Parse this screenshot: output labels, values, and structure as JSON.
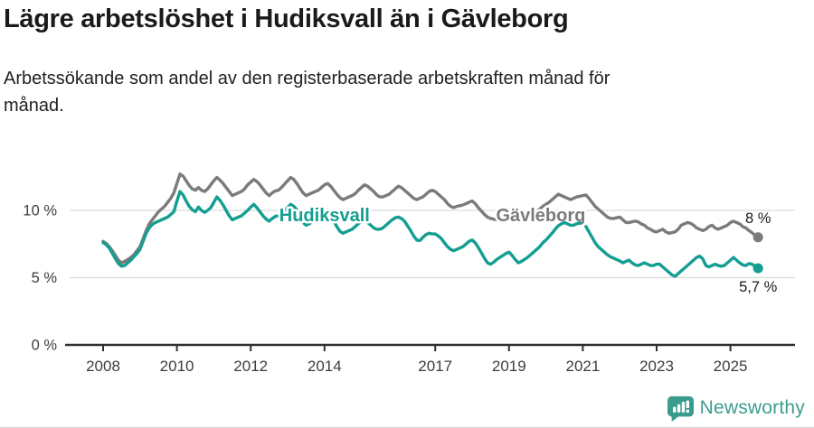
{
  "chart_data": {
    "type": "line",
    "title": "Lägre arbetslöshet i Hudiksvall än i Gävleborg",
    "subtitle": "Arbetssökande som andel av den registerbaserade arbetskraften månad för\nmånad.",
    "x_range": [
      2008,
      2025.75
    ],
    "ylim": [
      0,
      13.2
    ],
    "grid": "horizontal",
    "grid_color": "#dcdcdc",
    "axis_color": "#2e2e2e",
    "tick_label_color": "#3d3d3d",
    "end_label_color": "#1a1a1a",
    "x_ticks": [
      2008,
      2010,
      2012,
      2014,
      2017,
      2019,
      2021,
      2023,
      2025
    ],
    "y_ticks": [
      {
        "value": 0,
        "label": "0 %"
      },
      {
        "value": 5,
        "label": "5 %"
      },
      {
        "value": 10,
        "label": "10 %"
      }
    ],
    "series": [
      {
        "name": "Gävleborg",
        "color": "#7b7b7b",
        "end_label": "8 %",
        "end_label_side": "above",
        "label_anchor": {
          "x": 2019.86,
          "y": 9.6
        },
        "start": 2008,
        "step_months": 1,
        "values": [
          7.7,
          7.55,
          7.3,
          7.0,
          6.65,
          6.3,
          6.1,
          6.2,
          6.35,
          6.5,
          6.7,
          7.0,
          7.3,
          7.9,
          8.5,
          9.0,
          9.3,
          9.6,
          9.9,
          10.1,
          10.3,
          10.6,
          10.9,
          11.3,
          12.0,
          12.7,
          12.55,
          12.2,
          11.85,
          11.6,
          11.5,
          11.7,
          11.5,
          11.4,
          11.6,
          11.9,
          12.2,
          12.45,
          12.25,
          12.0,
          11.7,
          11.4,
          11.1,
          11.2,
          11.3,
          11.4,
          11.6,
          11.9,
          12.1,
          12.3,
          12.15,
          11.9,
          11.6,
          11.3,
          11.1,
          11.3,
          11.45,
          11.5,
          11.7,
          11.95,
          12.2,
          12.45,
          12.3,
          12.0,
          11.65,
          11.3,
          11.1,
          11.2,
          11.3,
          11.4,
          11.5,
          11.7,
          11.9,
          12.0,
          11.8,
          11.5,
          11.2,
          10.95,
          10.8,
          10.9,
          11.0,
          11.1,
          11.25,
          11.5,
          11.7,
          11.9,
          11.8,
          11.6,
          11.4,
          11.15,
          11.0,
          11.0,
          11.1,
          11.2,
          11.4,
          11.6,
          11.8,
          11.7,
          11.5,
          11.3,
          11.1,
          10.9,
          10.8,
          10.9,
          11.0,
          11.2,
          11.4,
          11.5,
          11.4,
          11.2,
          11.0,
          10.8,
          10.5,
          10.3,
          10.2,
          10.3,
          10.35,
          10.4,
          10.5,
          10.6,
          10.7,
          10.5,
          10.2,
          9.95,
          9.7,
          9.5,
          9.4,
          9.35,
          9.3,
          9.4,
          9.5,
          9.6,
          9.7,
          9.6,
          9.5,
          9.4,
          9.4,
          9.35,
          9.4,
          9.6,
          9.75,
          9.9,
          10.1,
          10.3,
          10.45,
          10.6,
          10.8,
          11.0,
          11.2,
          11.1,
          11.0,
          10.9,
          10.8,
          10.9,
          11.0,
          11.05,
          11.1,
          11.15,
          10.9,
          10.6,
          10.3,
          10.1,
          9.9,
          9.7,
          9.5,
          9.4,
          9.4,
          9.45,
          9.5,
          9.3,
          9.1,
          9.1,
          9.15,
          9.2,
          9.15,
          9.0,
          8.9,
          8.7,
          8.6,
          8.45,
          8.4,
          8.5,
          8.6,
          8.4,
          8.3,
          8.35,
          8.4,
          8.6,
          8.9,
          9.0,
          9.1,
          9.05,
          8.9,
          8.7,
          8.6,
          8.5,
          8.6,
          8.8,
          8.9,
          8.7,
          8.6,
          8.7,
          8.8,
          8.9,
          9.1,
          9.2,
          9.1,
          9.0,
          8.8,
          8.7,
          8.5,
          8.35,
          8.15,
          8.0
        ]
      },
      {
        "name": "Hudiksvall",
        "color": "#149e91",
        "end_label": "5,7 %",
        "end_label_side": "below",
        "label_anchor": {
          "x": 2014.0,
          "y": 9.6
        },
        "start": 2008,
        "step_months": 1,
        "values": [
          7.6,
          7.45,
          7.2,
          6.8,
          6.4,
          6.05,
          5.85,
          5.9,
          6.1,
          6.3,
          6.55,
          6.8,
          7.1,
          7.7,
          8.3,
          8.7,
          8.95,
          9.1,
          9.2,
          9.3,
          9.4,
          9.5,
          9.7,
          9.9,
          10.7,
          11.4,
          11.15,
          10.7,
          10.3,
          10.05,
          9.9,
          10.25,
          10.0,
          9.85,
          10.0,
          10.2,
          10.6,
          11.0,
          10.75,
          10.4,
          10.0,
          9.6,
          9.3,
          9.4,
          9.5,
          9.6,
          9.8,
          10.0,
          10.25,
          10.45,
          10.2,
          9.9,
          9.6,
          9.35,
          9.2,
          9.4,
          9.55,
          9.6,
          9.75,
          9.95,
          10.2,
          10.45,
          10.3,
          10.05,
          9.6,
          9.1,
          8.9,
          9.0,
          9.15,
          9.3,
          9.4,
          9.6,
          9.8,
          10.0,
          9.6,
          9.2,
          8.8,
          8.45,
          8.3,
          8.4,
          8.5,
          8.6,
          8.8,
          9.0,
          9.2,
          9.3,
          9.1,
          8.9,
          8.7,
          8.6,
          8.6,
          8.7,
          8.9,
          9.1,
          9.3,
          9.45,
          9.5,
          9.4,
          9.2,
          8.85,
          8.5,
          8.1,
          7.8,
          7.75,
          8.0,
          8.2,
          8.3,
          8.25,
          8.25,
          8.1,
          7.9,
          7.6,
          7.3,
          7.1,
          7.0,
          7.1,
          7.2,
          7.3,
          7.5,
          7.7,
          7.8,
          7.6,
          7.25,
          6.85,
          6.45,
          6.1,
          6.0,
          6.15,
          6.35,
          6.5,
          6.65,
          6.8,
          6.9,
          6.65,
          6.35,
          6.1,
          6.2,
          6.35,
          6.5,
          6.7,
          6.9,
          7.1,
          7.3,
          7.6,
          7.8,
          8.05,
          8.3,
          8.6,
          8.85,
          9.0,
          9.1,
          9.0,
          8.9,
          8.9,
          9.0,
          9.1,
          null,
          8.8,
          8.4,
          8.0,
          7.6,
          7.3,
          7.1,
          6.9,
          6.7,
          6.55,
          6.45,
          6.35,
          6.25,
          6.1,
          6.2,
          6.3,
          6.1,
          5.95,
          5.9,
          6.0,
          6.1,
          6.0,
          5.9,
          5.9,
          6.0,
          6.0,
          5.8,
          5.6,
          5.4,
          5.2,
          5.1,
          5.3,
          5.5,
          5.7,
          5.9,
          6.1,
          6.3,
          6.5,
          6.6,
          6.4,
          5.9,
          5.8,
          5.9,
          6.0,
          5.9,
          5.85,
          5.9,
          6.1,
          6.3,
          6.5,
          6.3,
          6.1,
          5.95,
          5.9,
          6.05,
          6.0,
          5.85,
          5.7
        ]
      }
    ]
  },
  "branding": {
    "logo_text": "Newsworthy",
    "logo_color": "#3b9c8e"
  }
}
